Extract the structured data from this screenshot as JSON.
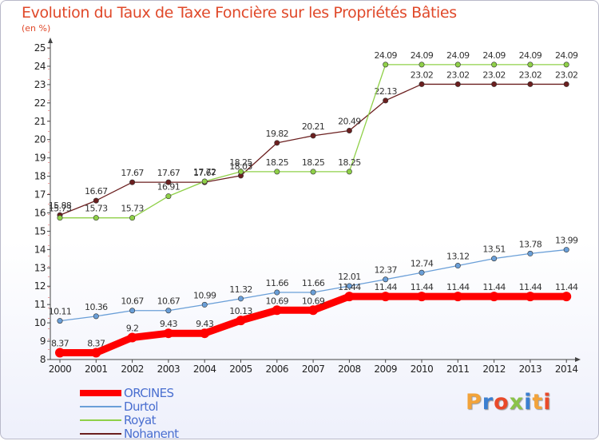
{
  "title": "Evolution du Taux de Taxe Foncière sur les Propriétés Bâties",
  "unit": "(en %)",
  "brand": {
    "text": "Proxiti",
    "colors": [
      "#f2a33a",
      "#3b7fd1",
      "#e94a2a",
      "#8bc34a",
      "#3b7fd1",
      "#f2a33a",
      "#e94a2a"
    ]
  },
  "chart_data": {
    "type": "line",
    "x": [
      "2000",
      "2001",
      "2002",
      "2003",
      "2004",
      "2005",
      "2006",
      "2007",
      "2008",
      "2009",
      "2010",
      "2011",
      "2012",
      "2013",
      "2014"
    ],
    "ylim": [
      8,
      25
    ],
    "yticks": [
      8,
      9,
      10,
      11,
      12,
      13,
      14,
      15,
      16,
      17,
      18,
      19,
      20,
      21,
      22,
      23,
      24,
      25
    ],
    "grid": false,
    "legend_position": "bottom-left",
    "series": [
      {
        "name": "ORCINES",
        "color": "#ff0000",
        "style": "thick",
        "values": [
          8.37,
          8.37,
          9.2,
          9.43,
          9.43,
          10.13,
          10.69,
          10.69,
          11.44,
          11.44,
          11.44,
          11.44,
          11.44,
          11.44,
          11.44
        ],
        "labels": [
          "8.37",
          "8.37",
          "9.2",
          "9.43",
          "9.43",
          "10.13",
          "10.69",
          "10.69",
          "11.44",
          "11.44",
          "11.44",
          "11.44",
          "11.44",
          "11.44",
          "11.44"
        ]
      },
      {
        "name": "Durtol",
        "color": "#6a9fd8",
        "style": "thin",
        "values": [
          10.11,
          10.36,
          10.67,
          10.67,
          10.99,
          11.32,
          11.66,
          11.66,
          12.01,
          12.37,
          12.74,
          13.12,
          13.51,
          13.78,
          13.99
        ],
        "labels": [
          "10.11",
          "10.36",
          "10.67",
          "10.67",
          "10.99",
          "11.32",
          "11.66",
          "11.66",
          "12.01",
          "12.37",
          "12.74",
          "13.12",
          "13.51",
          "13.78",
          "13.99"
        ]
      },
      {
        "name": "Royat",
        "color": "#8fd048",
        "style": "thin",
        "values": [
          15.73,
          15.73,
          15.73,
          16.91,
          17.72,
          18.25,
          18.25,
          18.25,
          18.25,
          24.09,
          24.09,
          24.09,
          24.09,
          24.09,
          24.09
        ],
        "labels": [
          "15.73",
          "15.73",
          "15.73",
          "16.91",
          "17.72",
          "18.25",
          "18.25",
          "18.25",
          "18.25",
          "24.09",
          "24.09",
          "24.09",
          "24.09",
          "24.09",
          "24.09"
        ]
      },
      {
        "name": "Nohanent",
        "color": "#6b1f1f",
        "style": "thin",
        "values": [
          15.88,
          16.67,
          17.67,
          17.67,
          17.67,
          18.03,
          19.82,
          20.21,
          20.49,
          22.13,
          23.02,
          23.02,
          23.02,
          23.02,
          23.02
        ],
        "labels": [
          "15.88",
          "16.67",
          "17.67",
          "17.67",
          "17.67",
          "18.03",
          "19.82",
          "20.21",
          "20.49",
          "22.13",
          "23.02",
          "23.02",
          "23.02",
          "23.02",
          "23.02"
        ]
      }
    ]
  }
}
